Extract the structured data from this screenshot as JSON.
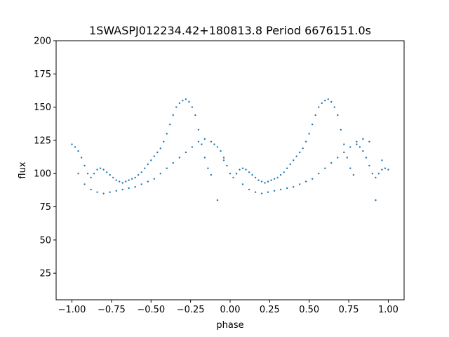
{
  "chart_data": {
    "type": "scatter",
    "title": "1SWASPJ012234.42+180813.8 Period 6676151.0s",
    "xlabel": "phase",
    "ylabel": "flux",
    "xlim": [
      -1.1,
      1.1
    ],
    "ylim": [
      5,
      200
    ],
    "xticks": [
      -1.0,
      -0.75,
      -0.5,
      -0.25,
      0.0,
      0.25,
      0.5,
      0.75,
      1.0
    ],
    "xtick_labels": [
      "−1.00",
      "−0.75",
      "−0.50",
      "−0.25",
      "0.00",
      "0.25",
      "0.50",
      "0.75",
      "1.00"
    ],
    "yticks": [
      25,
      50,
      75,
      100,
      125,
      150,
      175,
      200
    ],
    "ytick_labels": [
      "25",
      "50",
      "75",
      "100",
      "125",
      "150",
      "175",
      "200"
    ],
    "grid": false,
    "marker_color": "#1f77b4",
    "series": [
      {
        "x": [
          -1.0,
          -0.98,
          -0.96,
          -0.94,
          -0.92,
          -0.9,
          -0.88,
          -0.86,
          -0.84,
          -0.82,
          -0.8,
          -0.78,
          -0.76,
          -0.74,
          -0.72,
          -0.7,
          -0.68,
          -0.66,
          -0.64,
          -0.62,
          -0.6,
          -0.58,
          -0.56,
          -0.54,
          -0.52,
          -0.5,
          -0.48,
          -0.46,
          -0.44,
          -0.42,
          -0.4,
          -0.38,
          -0.36,
          -0.34,
          -0.32,
          -0.3,
          -0.28,
          -0.26,
          -0.24,
          -0.22,
          -0.2,
          -0.18,
          -0.16,
          -0.14,
          -0.12,
          -0.1,
          -0.08,
          -0.06,
          -0.04,
          -0.02,
          0.0,
          0.02,
          0.04,
          0.06,
          0.08,
          0.1,
          0.12,
          0.14,
          0.16,
          0.18,
          0.2,
          0.22,
          0.24,
          0.26,
          0.28,
          0.3,
          0.32,
          0.34,
          0.36,
          0.38,
          0.4,
          0.42,
          0.44,
          0.46,
          0.48,
          0.5,
          0.52,
          0.54,
          0.56,
          0.58,
          0.6,
          0.62,
          0.64,
          0.66,
          0.68,
          0.7,
          0.72,
          0.74,
          0.76,
          0.78,
          0.8,
          0.82,
          0.84,
          0.86,
          0.88,
          0.9,
          0.92,
          0.94,
          0.96,
          0.98,
          1.0
        ],
        "y": [
          122,
          120,
          117,
          112,
          106,
          100,
          97,
          100,
          103,
          104,
          103,
          101,
          99,
          97,
          95,
          94,
          93,
          94,
          95,
          96,
          97,
          99,
          101,
          104,
          107,
          110,
          113,
          116,
          119,
          124,
          130,
          137,
          144,
          150,
          153,
          155,
          156,
          154,
          150,
          144,
          133,
          122,
          112,
          104,
          99,
          122,
          120,
          117,
          112,
          106,
          100,
          97,
          100,
          103,
          104,
          103,
          101,
          99,
          97,
          95,
          94,
          93,
          94,
          95,
          96,
          97,
          99,
          101,
          104,
          107,
          110,
          113,
          116,
          119,
          124,
          130,
          137,
          144,
          150,
          153,
          155,
          156,
          154,
          150,
          144,
          133,
          122,
          112,
          104,
          99,
          122,
          120,
          117,
          112,
          106,
          100,
          97,
          100,
          103,
          104,
          103
        ]
      },
      {
        "x": [
          -0.96,
          -0.92,
          -0.88,
          -0.84,
          -0.8,
          -0.76,
          -0.72,
          -0.68,
          -0.64,
          -0.6,
          -0.56,
          -0.52,
          -0.48,
          -0.44,
          -0.4,
          -0.36,
          -0.32,
          -0.28,
          -0.24,
          -0.2,
          -0.16,
          -0.12,
          -0.08,
          -0.04,
          0.04,
          0.08,
          0.12,
          0.16,
          0.2,
          0.24,
          0.28,
          0.32,
          0.36,
          0.4,
          0.44,
          0.48,
          0.52,
          0.56,
          0.6,
          0.64,
          0.68,
          0.72,
          0.76,
          0.8,
          0.84,
          0.88,
          0.92,
          0.96
        ],
        "y": [
          100,
          92,
          88,
          86,
          85,
          86,
          87,
          88,
          89,
          90,
          92,
          94,
          96,
          100,
          104,
          108,
          112,
          116,
          120,
          124,
          126,
          124,
          80,
          110,
          100,
          92,
          88,
          86,
          85,
          86,
          87,
          88,
          89,
          90,
          92,
          94,
          96,
          100,
          104,
          108,
          112,
          116,
          120,
          124,
          126,
          124,
          80,
          110
        ]
      }
    ]
  }
}
